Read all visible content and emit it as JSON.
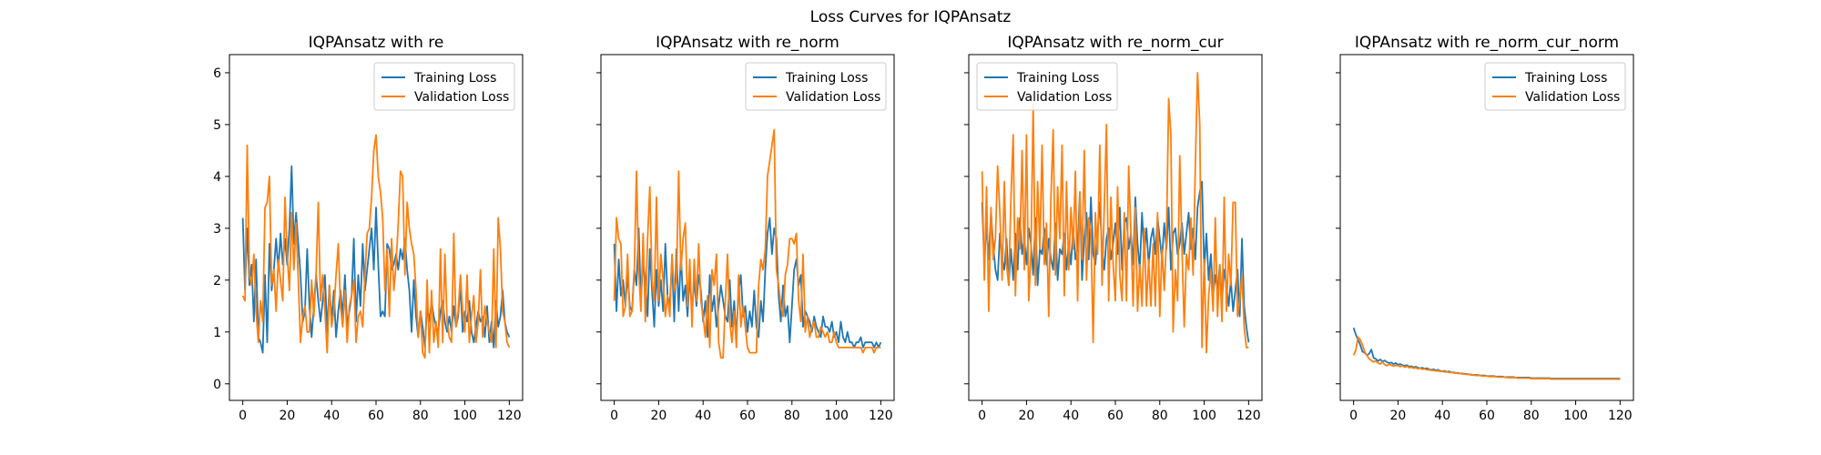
{
  "figure": {
    "title": "Loss Curves for IQPAnsatz"
  },
  "colors": {
    "training": "#1f77b4",
    "validation": "#ff7f0e",
    "axes": "#000000",
    "background": "#ffffff"
  },
  "chart_data": [
    {
      "type": "line",
      "title": "IQPAnsatz with re",
      "xlim": [
        -6,
        126
      ],
      "ylim": [
        -0.32,
        6.35
      ],
      "xticks": [
        0,
        20,
        40,
        60,
        80,
        100,
        120
      ],
      "yticks": [
        0,
        1,
        2,
        3,
        4,
        5,
        6
      ],
      "legend": "top-right",
      "grid": false,
      "series": [
        {
          "name": "Training Loss",
          "color": "#1f77b4",
          "values": [
            3.2,
            1.8,
            3.0,
            1.9,
            2.3,
            1.2,
            2.4,
            0.9,
            0.8,
            0.6,
            2.1,
            0.8,
            2.7,
            1.8,
            2.2,
            2.8,
            2.2,
            2.9,
            2.3,
            2.8,
            2.3,
            3.0,
            4.2,
            2.7,
            3.3,
            2.7,
            2.1,
            1.2,
            1.4,
            2.6,
            1.5,
            0.9,
            1.5,
            2.1,
            1.6,
            1.2,
            1.6,
            2.1,
            1.0,
            1.9,
            1.2,
            1.8,
            0.9,
            1.4,
            1.8,
            1.3,
            2.1,
            1.1,
            1.4,
            1.7,
            2.8,
            1.2,
            2.1,
            1.5,
            2.7,
            1.8,
            2.2,
            2.6,
            3.0,
            2.2,
            3.4,
            2.3,
            1.3,
            1.4,
            1.3,
            2.7,
            2.6,
            2.2,
            2.3,
            2.5,
            2.2,
            2.6,
            2.4,
            2.8,
            2.2,
            1.8,
            1.0,
            2.0,
            1.3,
            0.9,
            1.4,
            1.1,
            0.7,
            1.5,
            1.2,
            1.6,
            1.3,
            1.1,
            1.0,
            1.4,
            1.6,
            1.2,
            1.0,
            1.3,
            1.0,
            1.5,
            1.1,
            1.3,
            1.9,
            1.0,
            1.4,
            1.2,
            1.6,
            1.0,
            0.8,
            1.1,
            1.4,
            1.2,
            1.3,
            0.9,
            1.5,
            0.8,
            1.2,
            0.7,
            1.6,
            1.1,
            1.3,
            1.8,
            1.2,
            1.0,
            0.9
          ]
        },
        {
          "name": "Validation Loss",
          "color": "#ff7f0e",
          "values": [
            1.7,
            1.6,
            4.6,
            2.1,
            1.9,
            2.5,
            1.4,
            0.8,
            1.6,
            1.2,
            3.4,
            3.5,
            4.0,
            1.9,
            2.2,
            1.4,
            2.4,
            2.0,
            1.6,
            3.6,
            2.5,
            1.8,
            3.3,
            2.2,
            3.1,
            2.0,
            0.8,
            1.3,
            1.5,
            1.0,
            1.0,
            2.0,
            1.3,
            2.1,
            3.5,
            1.6,
            2.1,
            1.4,
            0.6,
            1.9,
            1.1,
            1.4,
            2.1,
            2.7,
            1.5,
            1.1,
            1.8,
            0.8,
            1.5,
            1.7,
            2.0,
            0.8,
            1.3,
            1.4,
            1.1,
            2.1,
            2.9,
            3.0,
            3.6,
            4.5,
            4.8,
            4.0,
            3.7,
            3.2,
            1.8,
            2.6,
            1.3,
            2.8,
            1.8,
            2.3,
            3.1,
            4.1,
            4.0,
            2.1,
            3.5,
            3.0,
            2.7,
            2.5,
            1.8,
            0.9,
            1.4,
            0.6,
            0.5,
            2.0,
            0.6,
            1.8,
            0.8,
            1.2,
            0.7,
            2.6,
            0.8,
            2.5,
            1.2,
            0.9,
            0.8,
            2.9,
            1.1,
            1.4,
            2.1,
            1.4,
            1.0,
            2.1,
            0.8,
            1.3,
            1.7,
            0.8,
            1.2,
            2.2,
            0.9,
            1.5,
            1.2,
            1.0,
            0.8,
            2.6,
            0.7,
            3.2,
            2.6,
            1.4,
            1.2,
            0.8,
            0.7
          ]
        }
      ]
    },
    {
      "type": "line",
      "title": "IQPAnsatz with re_norm",
      "xlim": [
        -6,
        126
      ],
      "ylim": [
        -0.32,
        6.35
      ],
      "xticks": [
        0,
        20,
        40,
        60,
        80,
        100,
        120
      ],
      "yticks": [
        0,
        1,
        2,
        3,
        4,
        5,
        6
      ],
      "legend": "top-right",
      "grid": false,
      "series": [
        {
          "name": "Training Loss",
          "color": "#1f77b4",
          "values": [
            2.7,
            1.4,
            2.4,
            1.7,
            2.0,
            1.5,
            2.1,
            1.5,
            1.4,
            2.2,
            1.9,
            3.0,
            1.6,
            2.4,
            2.0,
            1.3,
            2.6,
            1.8,
            1.1,
            2.2,
            1.5,
            2.0,
            1.4,
            2.7,
            1.7,
            1.5,
            2.4,
            1.2,
            2.6,
            1.4,
            2.5,
            1.6,
            1.9,
            1.3,
            2.1,
            1.4,
            2.0,
            1.5,
            2.1,
            1.8,
            1.2,
            1.6,
            0.9,
            2.1,
            1.4,
            1.7,
            1.1,
            1.5,
            1.9,
            1.6,
            1.3,
            1.2,
            2.0,
            1.1,
            1.6,
            0.9,
            1.8,
            2.1,
            1.3,
            1.5,
            1.0,
            1.4,
            1.1,
            1.8,
            1.1,
            0.9,
            1.6,
            1.2,
            2.2,
            2.9,
            3.2,
            2.5,
            3.0,
            2.8,
            1.7,
            1.2,
            1.9,
            1.3,
            1.5,
            0.8,
            1.5,
            2.2,
            2.4,
            1.9,
            2.1,
            1.1,
            1.4,
            1.3,
            1.2,
            1.0,
            1.3,
            1.1,
            1.0,
            0.9,
            1.3,
            1.1,
            1.1,
            1.0,
            1.2,
            0.9,
            1.0,
            0.8,
            1.2,
            0.9,
            0.8,
            1.0,
            0.8,
            0.8,
            0.7,
            0.8,
            0.8,
            0.9,
            0.7,
            0.8,
            0.8,
            0.8,
            0.8,
            0.7,
            0.8,
            0.7,
            0.8
          ]
        },
        {
          "name": "Validation Loss",
          "color": "#ff7f0e",
          "values": [
            1.6,
            3.2,
            2.8,
            2.7,
            1.3,
            1.5,
            2.5,
            1.3,
            1.4,
            2.1,
            4.1,
            2.2,
            1.4,
            2.9,
            1.2,
            2.8,
            3.8,
            2.0,
            1.6,
            3.6,
            1.6,
            2.5,
            2.0,
            1.3,
            1.7,
            1.3,
            2.5,
            1.8,
            2.0,
            4.1,
            2.2,
            2.8,
            3.1,
            1.5,
            2.4,
            1.1,
            2.4,
            1.6,
            2.7,
            1.6,
            1.3,
            0.9,
            1.7,
            0.7,
            2.2,
            1.9,
            2.5,
            0.8,
            0.5,
            0.5,
            1.6,
            2.5,
            1.2,
            0.8,
            1.4,
            0.7,
            2.1,
            1.1,
            1.5,
            1.1,
            0.7,
            0.6,
            0.6,
            0.6,
            0.6,
            1.9,
            2.4,
            2.2,
            2.6,
            4.0,
            4.3,
            4.6,
            4.9,
            2.2,
            1.9,
            1.5,
            1.3,
            2.1,
            2.3,
            2.8,
            2.8,
            2.7,
            2.9,
            1.6,
            1.2,
            2.5,
            1.0,
            1.3,
            0.9,
            1.1,
            1.2,
            0.9,
            0.9,
            1.1,
            1.0,
            0.9,
            1.0,
            0.8,
            0.8,
            1.0,
            0.8,
            0.7,
            0.7,
            0.7,
            0.7,
            0.7,
            0.7,
            0.7,
            0.7,
            0.7,
            0.7,
            0.7,
            0.6,
            0.7,
            0.7,
            0.7,
            0.7,
            0.6,
            0.7,
            0.7,
            0.7
          ]
        }
      ]
    },
    {
      "type": "line",
      "title": "IQPAnsatz with re_norm_cur",
      "xlim": [
        -6,
        126
      ],
      "ylim": [
        -0.32,
        6.35
      ],
      "xticks": [
        0,
        20,
        40,
        60,
        80,
        100,
        120
      ],
      "yticks": [
        0,
        1,
        2,
        3,
        4,
        5,
        6
      ],
      "legend": "top-left",
      "grid": false,
      "series": [
        {
          "name": "Training Loss",
          "color": "#1f77b4",
          "values": [
            3.5,
            2.3,
            3.1,
            2.4,
            3.3,
            2.7,
            2.2,
            2.0,
            2.9,
            2.4,
            2.2,
            2.8,
            1.9,
            2.6,
            2.0,
            2.9,
            2.2,
            3.2,
            2.5,
            2.8,
            2.3,
            3.0,
            2.7,
            2.1,
            3.2,
            1.9,
            2.6,
            2.5,
            3.0,
            2.3,
            2.8,
            2.4,
            2.2,
            3.1,
            2.0,
            2.6,
            2.5,
            2.9,
            2.2,
            2.7,
            2.3,
            3.0,
            2.4,
            2.6,
            3.7,
            2.0,
            2.8,
            3.3,
            2.4,
            3.6,
            2.5,
            2.3,
            2.9,
            3.5,
            2.6,
            2.2,
            2.8,
            3.0,
            2.4,
            2.7,
            3.1,
            2.5,
            3.4,
            2.2,
            3.1,
            3.2,
            2.6,
            2.9,
            2.3,
            3.6,
            2.7,
            2.2,
            3.3,
            2.5,
            3.0,
            2.3,
            2.8,
            3.0,
            2.5,
            3.2,
            2.8,
            2.4,
            3.1,
            2.6,
            3.4,
            2.2,
            2.9,
            3.0,
            2.5,
            2.7,
            3.1,
            2.5,
            2.9,
            3.3,
            2.6,
            3.0,
            2.4,
            3.4,
            3.7,
            3.9,
            2.2,
            2.9,
            2.0,
            2.5,
            1.7,
            2.1,
            1.8,
            2.3,
            1.6,
            2.2,
            1.9,
            1.5,
            2.0,
            1.4,
            1.8,
            2.2,
            1.3,
            2.8,
            1.5,
            1.1,
            0.8
          ]
        },
        {
          "name": "Validation Loss",
          "color": "#ff7f0e",
          "values": [
            4.1,
            2.0,
            3.8,
            1.4,
            3.4,
            2.4,
            2.8,
            4.2,
            3.3,
            2.0,
            3.9,
            2.3,
            1.9,
            3.6,
            4.8,
            1.7,
            3.2,
            2.6,
            4.5,
            2.2,
            4.8,
            1.6,
            2.5,
            5.4,
            1.9,
            3.9,
            2.6,
            4.6,
            2.3,
            3.1,
            1.3,
            3.6,
            4.9,
            2.1,
            3.8,
            2.8,
            4.6,
            1.7,
            3.9,
            2.2,
            3.4,
            2.6,
            4.1,
            1.6,
            3.7,
            2.4,
            4.5,
            2.0,
            3.2,
            2.9,
            0.8,
            3.3,
            2.5,
            4.6,
            1.9,
            3.4,
            5.0,
            1.6,
            3.6,
            2.3,
            1.6,
            3.8,
            2.1,
            1.6,
            3.3,
            1.6,
            4.2,
            2.9,
            1.5,
            3.4,
            1.4,
            2.3,
            1.5,
            3.0,
            1.5,
            2.4,
            1.5,
            2.7,
            1.5,
            3.3,
            1.3,
            2.6,
            1.8,
            2.8,
            5.5,
            4.8,
            1.0,
            2.2,
            1.6,
            4.4,
            2.6,
            1.1,
            2.5,
            2.2,
            3.2,
            2.1,
            4.2,
            6.0,
            5.0,
            0.7,
            2.4,
            0.6,
            1.7,
            2.2,
            1.4,
            3.2,
            1.3,
            2.3,
            1.2,
            3.6,
            1.4,
            2.5,
            1.9,
            3.5,
            3.5,
            1.3,
            1.6,
            2.1,
            1.1,
            0.7,
            0.7
          ]
        }
      ]
    },
    {
      "type": "line",
      "title": "IQPAnsatz with re_norm_cur_norm",
      "xlim": [
        -6,
        126
      ],
      "ylim": [
        -0.32,
        6.35
      ],
      "xticks": [
        0,
        20,
        40,
        60,
        80,
        100,
        120
      ],
      "yticks": [
        0,
        1,
        2,
        3,
        4,
        5,
        6
      ],
      "legend": "top-right",
      "grid": false,
      "series": [
        {
          "name": "Training Loss",
          "color": "#1f77b4",
          "values": [
            1.08,
            0.95,
            0.85,
            0.75,
            0.62,
            0.6,
            0.55,
            0.58,
            0.66,
            0.5,
            0.48,
            0.44,
            0.47,
            0.43,
            0.45,
            0.42,
            0.4,
            0.41,
            0.38,
            0.4,
            0.37,
            0.38,
            0.36,
            0.35,
            0.36,
            0.33,
            0.34,
            0.32,
            0.33,
            0.31,
            0.3,
            0.31,
            0.29,
            0.3,
            0.28,
            0.27,
            0.28,
            0.26,
            0.27,
            0.25,
            0.24,
            0.25,
            0.23,
            0.24,
            0.22,
            0.22,
            0.21,
            0.21,
            0.2,
            0.2,
            0.19,
            0.19,
            0.18,
            0.18,
            0.17,
            0.17,
            0.17,
            0.16,
            0.16,
            0.16,
            0.15,
            0.15,
            0.15,
            0.15,
            0.14,
            0.14,
            0.14,
            0.14,
            0.13,
            0.13,
            0.13,
            0.13,
            0.13,
            0.12,
            0.12,
            0.12,
            0.12,
            0.12,
            0.12,
            0.12,
            0.11,
            0.11,
            0.11,
            0.11,
            0.11,
            0.11,
            0.11,
            0.11,
            0.11,
            0.1,
            0.1,
            0.1,
            0.1,
            0.1,
            0.1,
            0.1,
            0.1,
            0.1,
            0.1,
            0.1,
            0.1,
            0.1,
            0.1,
            0.1,
            0.1,
            0.1,
            0.1,
            0.1,
            0.1,
            0.1,
            0.1,
            0.1,
            0.1,
            0.1,
            0.1,
            0.1,
            0.1,
            0.1,
            0.1,
            0.1,
            0.1
          ]
        },
        {
          "name": "Validation Loss",
          "color": "#ff7f0e",
          "values": [
            0.55,
            0.65,
            0.9,
            0.85,
            0.75,
            0.62,
            0.55,
            0.48,
            0.45,
            0.42,
            0.44,
            0.4,
            0.38,
            0.42,
            0.37,
            0.35,
            0.38,
            0.36,
            0.34,
            0.36,
            0.35,
            0.33,
            0.35,
            0.32,
            0.34,
            0.31,
            0.32,
            0.3,
            0.31,
            0.29,
            0.3,
            0.28,
            0.29,
            0.27,
            0.27,
            0.26,
            0.26,
            0.25,
            0.25,
            0.24,
            0.24,
            0.23,
            0.23,
            0.22,
            0.22,
            0.21,
            0.21,
            0.2,
            0.2,
            0.19,
            0.19,
            0.18,
            0.18,
            0.17,
            0.17,
            0.16,
            0.16,
            0.16,
            0.15,
            0.15,
            0.15,
            0.14,
            0.14,
            0.14,
            0.14,
            0.13,
            0.13,
            0.13,
            0.13,
            0.12,
            0.12,
            0.12,
            0.12,
            0.12,
            0.11,
            0.11,
            0.11,
            0.11,
            0.11,
            0.11,
            0.1,
            0.1,
            0.1,
            0.1,
            0.1,
            0.1,
            0.1,
            0.1,
            0.1,
            0.09,
            0.09,
            0.09,
            0.09,
            0.09,
            0.09,
            0.09,
            0.09,
            0.09,
            0.09,
            0.09,
            0.09,
            0.09,
            0.09,
            0.09,
            0.09,
            0.09,
            0.09,
            0.09,
            0.09,
            0.09,
            0.09,
            0.09,
            0.09,
            0.09,
            0.09,
            0.09,
            0.09,
            0.09,
            0.09,
            0.09,
            0.09
          ]
        }
      ]
    }
  ]
}
